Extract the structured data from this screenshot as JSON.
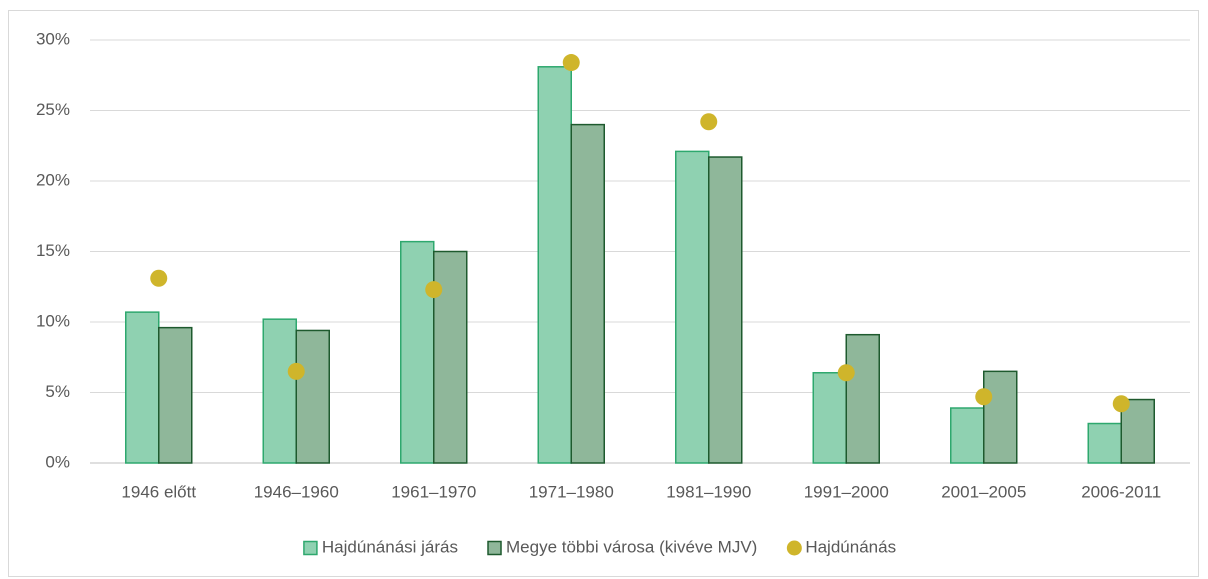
{
  "chart_data": {
    "type": "bar",
    "categories": [
      "1946 előtt",
      "1946–1960",
      "1961–1970",
      "1971–1980",
      "1981–1990",
      "1991–2000",
      "2001–2005",
      "2006-2011"
    ],
    "series": [
      {
        "name": "Hajdúnánási járás",
        "type": "bar",
        "color": "#8fd1b1",
        "stroke": "#2ea86e",
        "values": [
          10.7,
          10.2,
          15.7,
          28.1,
          22.1,
          6.4,
          3.9,
          2.8
        ]
      },
      {
        "name": "Megye többi városa (kivéve MJV)",
        "type": "bar",
        "color": "#8fb79a",
        "stroke": "#1e5a2e",
        "values": [
          9.6,
          9.4,
          15.0,
          24.0,
          21.7,
          9.1,
          6.5,
          4.5
        ]
      },
      {
        "name": "Hajdúnánás",
        "type": "scatter",
        "color": "#cfb52b",
        "values": [
          13.1,
          6.5,
          12.3,
          28.4,
          24.2,
          6.4,
          4.7,
          4.2
        ]
      }
    ],
    "ylim": [
      0,
      30
    ],
    "yticks": [
      {
        "value": 0,
        "label": "0%"
      },
      {
        "value": 5,
        "label": "5%"
      },
      {
        "value": 10,
        "label": "10%"
      },
      {
        "value": 15,
        "label": "15%"
      },
      {
        "value": 20,
        "label": "20%"
      },
      {
        "value": 25,
        "label": "25%"
      },
      {
        "value": 30,
        "label": "30%"
      }
    ],
    "grid": true,
    "legend": "bottom"
  }
}
